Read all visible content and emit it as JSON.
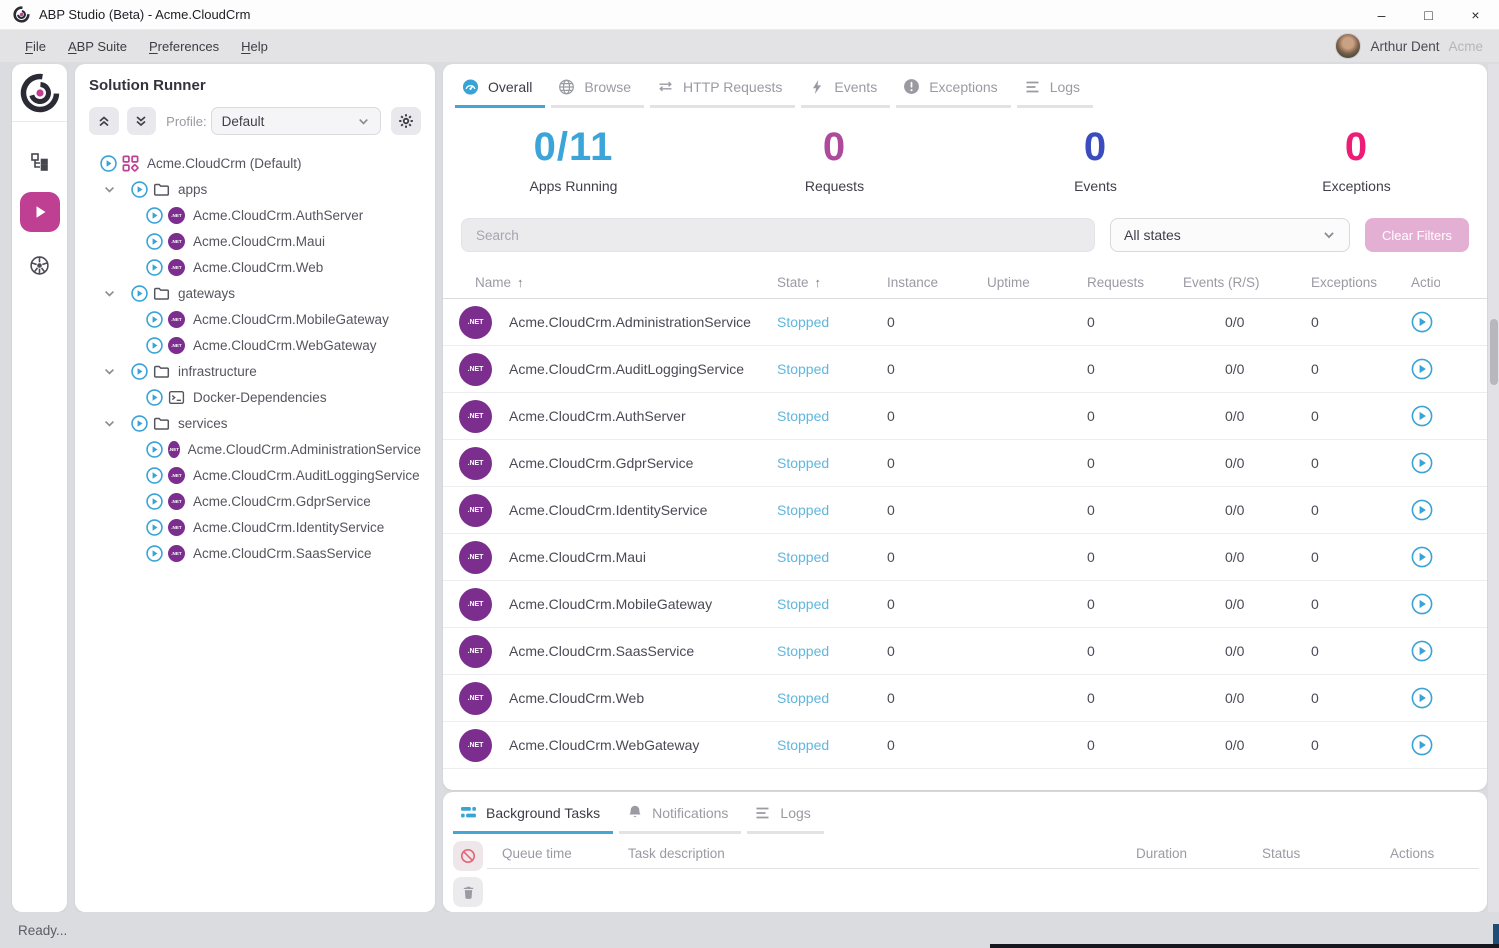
{
  "window": {
    "title": "ABP Studio (Beta) - Acme.CloudCrm",
    "controls": [
      {
        "name": "minimize",
        "glyph": "–"
      },
      {
        "name": "maximize",
        "glyph": "□"
      },
      {
        "name": "close",
        "glyph": "×"
      }
    ]
  },
  "menu": {
    "items": [
      {
        "label": "File"
      },
      {
        "label": "ABP Suite"
      },
      {
        "label": "Preferences"
      },
      {
        "label": "Help"
      }
    ],
    "user": {
      "name": "Arthur Dent",
      "org": "Acme"
    }
  },
  "rail": {
    "items": [
      {
        "icon": "abp-logo"
      },
      {
        "icon": "solution-explorer"
      },
      {
        "icon": "solution-runner",
        "active": true
      },
      {
        "icon": "kubernetes"
      }
    ]
  },
  "solution_runner": {
    "title": "Solution Runner",
    "profile_label": "Profile:",
    "profile_value": "Default",
    "toolbar_icons": [
      "collapse-all",
      "expand-all",
      "settings-gear"
    ],
    "tree": [
      {
        "label": "Acme.CloudCrm (Default)",
        "icon": "solution",
        "level": 0,
        "chevron": false
      },
      {
        "label": "apps",
        "icon": "folder",
        "level": 1,
        "chevron": true
      },
      {
        "label": "Acme.CloudCrm.AuthServer",
        "icon": "dotnet",
        "level": 2,
        "chevron": false
      },
      {
        "label": "Acme.CloudCrm.Maui",
        "icon": "dotnet",
        "level": 2,
        "chevron": false
      },
      {
        "label": "Acme.CloudCrm.Web",
        "icon": "dotnet",
        "level": 2,
        "chevron": false
      },
      {
        "label": "gateways",
        "icon": "folder",
        "level": 1,
        "chevron": true
      },
      {
        "label": "Acme.CloudCrm.MobileGateway",
        "icon": "dotnet",
        "level": 2,
        "chevron": false
      },
      {
        "label": "Acme.CloudCrm.WebGateway",
        "icon": "dotnet",
        "level": 2,
        "chevron": false
      },
      {
        "label": "infrastructure",
        "icon": "folder",
        "level": 1,
        "chevron": true
      },
      {
        "label": "Docker-Dependencies",
        "icon": "terminal",
        "level": 2,
        "chevron": false
      },
      {
        "label": "services",
        "icon": "folder",
        "level": 1,
        "chevron": true
      },
      {
        "label": "Acme.CloudCrm.AdministrationService",
        "icon": "dotnet",
        "level": 2,
        "chevron": false
      },
      {
        "label": "Acme.CloudCrm.AuditLoggingService",
        "icon": "dotnet",
        "level": 2,
        "chevron": false
      },
      {
        "label": "Acme.CloudCrm.GdprService",
        "icon": "dotnet",
        "level": 2,
        "chevron": false
      },
      {
        "label": "Acme.CloudCrm.IdentityService",
        "icon": "dotnet",
        "level": 2,
        "chevron": false
      },
      {
        "label": "Acme.CloudCrm.SaasService",
        "icon": "dotnet",
        "level": 2,
        "chevron": false
      }
    ]
  },
  "main": {
    "tabs": [
      {
        "label": "Overall",
        "icon": "gauge",
        "active": true
      },
      {
        "label": "Browse",
        "icon": "globe",
        "active": false
      },
      {
        "label": "HTTP Requests",
        "icon": "swap-arrows",
        "active": false
      },
      {
        "label": "Events",
        "icon": "lightning",
        "active": false
      },
      {
        "label": "Exceptions",
        "icon": "exclamation",
        "active": false
      },
      {
        "label": "Logs",
        "icon": "lines",
        "active": false
      }
    ],
    "stats": [
      {
        "value": "0/11",
        "label": "Apps Running",
        "color": "#3ba5d9"
      },
      {
        "value": "0",
        "label": "Requests",
        "color": "#ae4a9c"
      },
      {
        "value": "0",
        "label": "Events",
        "color": "#3b4cbe"
      },
      {
        "value": "0",
        "label": "Exceptions",
        "color": "#ec1c77"
      }
    ],
    "filters": {
      "search_placeholder": "Search",
      "state_value": "All states",
      "clear_label": "Clear Filters"
    },
    "table": {
      "columns": [
        {
          "label": "Name",
          "sorted": true
        },
        {
          "label": "State",
          "sorted": true
        },
        {
          "label": "Instance",
          "sorted": false
        },
        {
          "label": "Uptime",
          "sorted": false
        },
        {
          "label": "Requests",
          "sorted": false
        },
        {
          "label": "Events (R/S)",
          "sorted": false
        },
        {
          "label": "Exceptions",
          "sorted": false
        },
        {
          "label": "Actions",
          "sorted": false
        }
      ],
      "rows": [
        {
          "name": "Acme.CloudCrm.AdministrationService",
          "state": "Stopped",
          "instance": "0",
          "uptime": "",
          "requests": "0",
          "events": "0/0",
          "exceptions": "0"
        },
        {
          "name": "Acme.CloudCrm.AuditLoggingService",
          "state": "Stopped",
          "instance": "0",
          "uptime": "",
          "requests": "0",
          "events": "0/0",
          "exceptions": "0"
        },
        {
          "name": "Acme.CloudCrm.AuthServer",
          "state": "Stopped",
          "instance": "0",
          "uptime": "",
          "requests": "0",
          "events": "0/0",
          "exceptions": "0"
        },
        {
          "name": "Acme.CloudCrm.GdprService",
          "state": "Stopped",
          "instance": "0",
          "uptime": "",
          "requests": "0",
          "events": "0/0",
          "exceptions": "0"
        },
        {
          "name": "Acme.CloudCrm.IdentityService",
          "state": "Stopped",
          "instance": "0",
          "uptime": "",
          "requests": "0",
          "events": "0/0",
          "exceptions": "0"
        },
        {
          "name": "Acme.CloudCrm.Maui",
          "state": "Stopped",
          "instance": "0",
          "uptime": "",
          "requests": "0",
          "events": "0/0",
          "exceptions": "0"
        },
        {
          "name": "Acme.CloudCrm.MobileGateway",
          "state": "Stopped",
          "instance": "0",
          "uptime": "",
          "requests": "0",
          "events": "0/0",
          "exceptions": "0"
        },
        {
          "name": "Acme.CloudCrm.SaasService",
          "state": "Stopped",
          "instance": "0",
          "uptime": "",
          "requests": "0",
          "events": "0/0",
          "exceptions": "0"
        },
        {
          "name": "Acme.CloudCrm.Web",
          "state": "Stopped",
          "instance": "0",
          "uptime": "",
          "requests": "0",
          "events": "0/0",
          "exceptions": "0"
        },
        {
          "name": "Acme.CloudCrm.WebGateway",
          "state": "Stopped",
          "instance": "0",
          "uptime": "",
          "requests": "0",
          "events": "0/0",
          "exceptions": "0"
        }
      ]
    }
  },
  "bottom": {
    "tabs": [
      {
        "label": "Background Tasks",
        "icon": "stack",
        "active": true
      },
      {
        "label": "Notifications",
        "icon": "bell",
        "active": false
      },
      {
        "label": "Logs",
        "icon": "lines",
        "active": false
      }
    ],
    "action_icons": [
      "cancel-task",
      "clear-tasks"
    ],
    "columns": [
      "Queue time",
      "Task description",
      "Duration",
      "Status",
      "Actions"
    ]
  },
  "status_bar": {
    "text": "Ready..."
  },
  "colors": {
    "accent_blue": "#45a6d6",
    "accent_magenta": "#bf3f92",
    "dotnet_purple": "#7b2e8d",
    "stopped_state": "#5fb6de"
  }
}
